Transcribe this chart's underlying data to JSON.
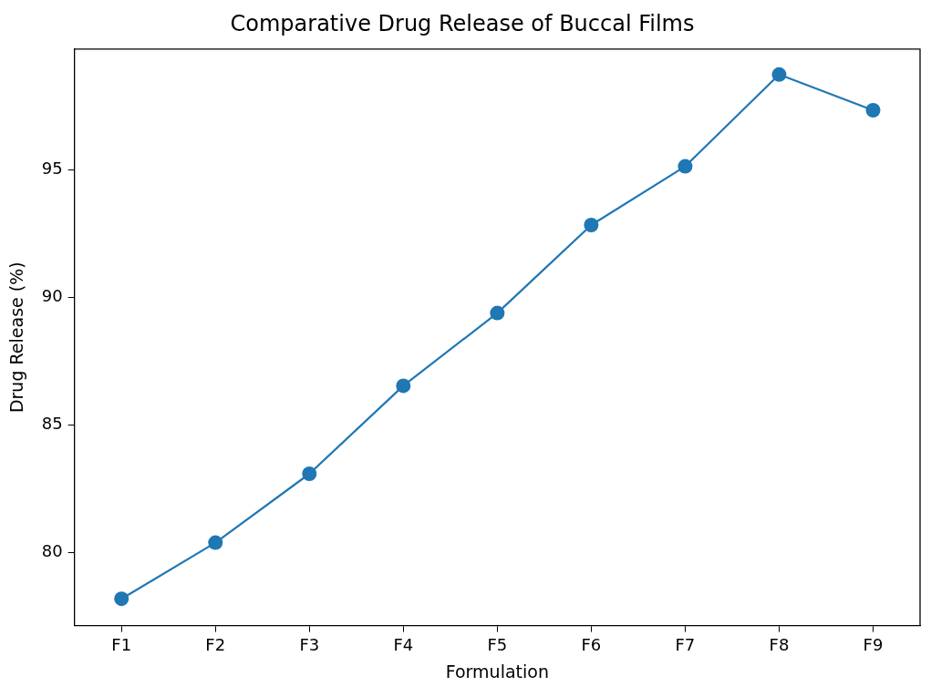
{
  "chart_data": {
    "type": "line",
    "title": "Comparative Drug Release of Buccal Films",
    "xlabel": "Formulation",
    "ylabel": "Drug Release (%)",
    "categories": [
      "F1",
      "F2",
      "F3",
      "F4",
      "F5",
      "F6",
      "F7",
      "F8",
      "F9"
    ],
    "series": [
      {
        "color": "#1f77b4",
        "values": [
          78.2,
          80.4,
          83.1,
          86.55,
          89.4,
          92.85,
          95.15,
          98.75,
          97.35
        ]
      }
    ],
    "ylim": [
      77.15,
      99.75
    ],
    "yticks": [
      80,
      85,
      90,
      95
    ],
    "grid": false,
    "legend": false,
    "marker": "circle",
    "line_style": "solid"
  }
}
